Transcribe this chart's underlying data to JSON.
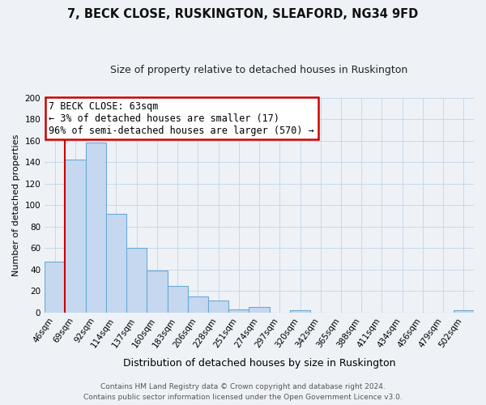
{
  "title": "7, BECK CLOSE, RUSKINGTON, SLEAFORD, NG34 9FD",
  "subtitle": "Size of property relative to detached houses in Ruskington",
  "xlabel": "Distribution of detached houses by size in Ruskington",
  "ylabel": "Number of detached properties",
  "bar_labels": [
    "46sqm",
    "69sqm",
    "92sqm",
    "114sqm",
    "137sqm",
    "160sqm",
    "183sqm",
    "206sqm",
    "228sqm",
    "251sqm",
    "274sqm",
    "297sqm",
    "320sqm",
    "342sqm",
    "365sqm",
    "388sqm",
    "411sqm",
    "434sqm",
    "456sqm",
    "479sqm",
    "502sqm"
  ],
  "bar_values": [
    47,
    142,
    158,
    92,
    60,
    39,
    25,
    15,
    11,
    3,
    5,
    0,
    2,
    0,
    0,
    0,
    0,
    0,
    0,
    0,
    2
  ],
  "bar_color": "#c5d8f0",
  "bar_edge_color": "#6aaad4",
  "ylim": [
    0,
    200
  ],
  "yticks": [
    0,
    20,
    40,
    60,
    80,
    100,
    120,
    140,
    160,
    180,
    200
  ],
  "annotation_title": "7 BECK CLOSE: 63sqm",
  "annotation_line1": "← 3% of detached houses are smaller (17)",
  "annotation_line2": "96% of semi-detached houses are larger (570) →",
  "annotation_box_color": "#ffffff",
  "annotation_box_edge_color": "#cc0000",
  "red_line_color": "#cc0000",
  "grid_color": "#c8d8e8",
  "footer_line1": "Contains HM Land Registry data © Crown copyright and database right 2024.",
  "footer_line2": "Contains public sector information licensed under the Open Government Licence v3.0.",
  "background_color": "#eef2f7",
  "title_fontsize": 10.5,
  "subtitle_fontsize": 9,
  "ylabel_fontsize": 8,
  "xlabel_fontsize": 9,
  "tick_fontsize": 7.5,
  "annotation_fontsize": 8.5,
  "footer_fontsize": 6.5
}
